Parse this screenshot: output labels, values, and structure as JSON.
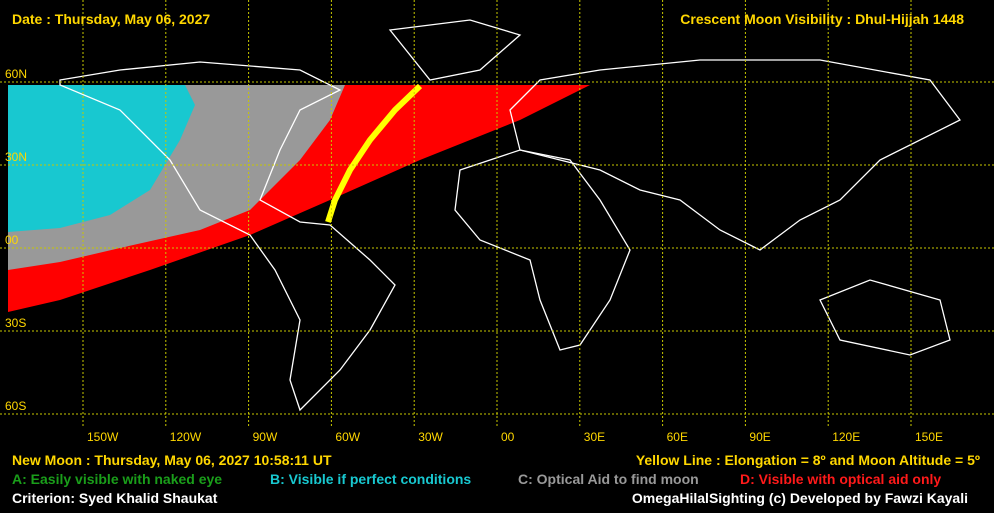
{
  "header": {
    "date": "Date : Thursday, May 06, 2027",
    "title": "Crescent Moon Visibility : Dhul-Hijjah  1448"
  },
  "map": {
    "lat_labels": [
      "60N",
      "30N",
      "00",
      "30S",
      "60S"
    ],
    "lon_labels": [
      "150W",
      "120W",
      "90W",
      "60W",
      "30W",
      "00",
      "30E",
      "60E",
      "90E",
      "120E",
      "150E"
    ]
  },
  "footer": {
    "new_moon": "New Moon : Thursday, May 06, 2027  10:58:11  UT",
    "yellow_line": "Yellow Line : Elongation = 8º  and Moon Altitude = 5º",
    "legend": [
      "A: Easily visible with naked eye",
      "B: Visible if perfect conditions",
      "C: Optical Aid to find moon",
      "D: Visible with optical aid only"
    ],
    "criterion": "Criterion: Syed Khalid Shaukat",
    "credit": "OmegaHilalSighting  (c)  Developed by Fawzi Kayali"
  }
}
